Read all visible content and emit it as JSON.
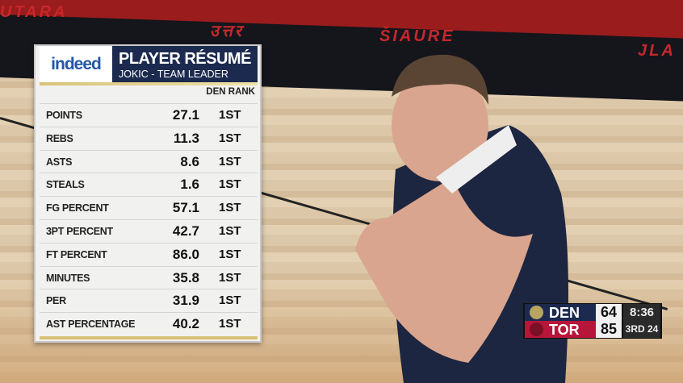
{
  "background": {
    "banner_texts": [
      "UTARA",
      "उत्तर",
      "ŠIAURE",
      "JLA"
    ]
  },
  "graphic": {
    "sponsor": "indeed",
    "title": "PLAYER RÉSUMÉ",
    "subtitle": "JOKIC - TEAM LEADER",
    "column_header": "DEN RANK",
    "rows": [
      {
        "label": "POINTS",
        "value": "27.1",
        "rank": "1ST"
      },
      {
        "label": "REBS",
        "value": "11.3",
        "rank": "1ST"
      },
      {
        "label": "ASTS",
        "value": "8.6",
        "rank": "1ST"
      },
      {
        "label": "STEALS",
        "value": "1.6",
        "rank": "1ST"
      },
      {
        "label": "FG PERCENT",
        "value": "57.1",
        "rank": "1ST"
      },
      {
        "label": "3PT PERCENT",
        "value": "42.7",
        "rank": "1ST"
      },
      {
        "label": "FT PERCENT",
        "value": "86.0",
        "rank": "1ST"
      },
      {
        "label": "MINUTES",
        "value": "35.8",
        "rank": "1ST"
      },
      {
        "label": "PER",
        "value": "31.9",
        "rank": "1ST"
      },
      {
        "label": "AST PERCENTAGE",
        "value": "40.2",
        "rank": "1ST"
      }
    ]
  },
  "scoreboard": {
    "teams": [
      {
        "abbr": "DEN",
        "score": "64",
        "color": "#1c2a4f"
      },
      {
        "abbr": "TOR",
        "score": "85",
        "color": "#b8153a"
      }
    ],
    "clock": "8:36",
    "period": "3RD",
    "shot_clock": "24"
  }
}
